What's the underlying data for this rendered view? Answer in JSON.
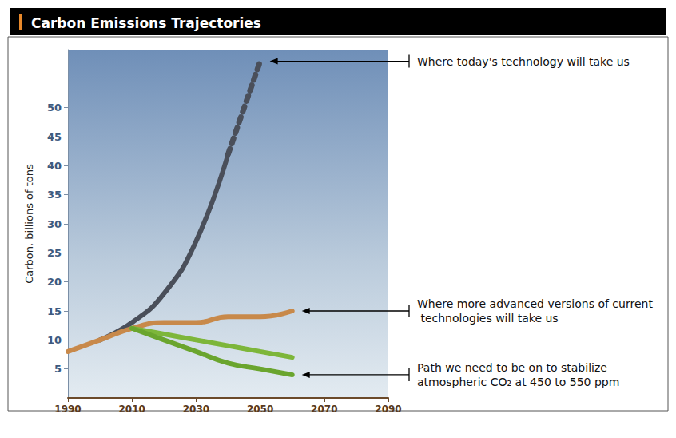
{
  "chart_data": {
    "type": "line",
    "title": "Carbon Emissions Trajectories",
    "y_label": "Carbon, billions of tons",
    "x": [
      1990,
      2000,
      2010,
      2020,
      2030,
      2040,
      2050,
      2060,
      2070,
      2080,
      2090
    ],
    "xlim": [
      1990,
      2090
    ],
    "xticks": [
      1990,
      2010,
      2030,
      2050,
      2070,
      2090
    ],
    "ylim": [
      0,
      60
    ],
    "yticks": [
      5,
      10,
      15,
      20,
      25,
      30,
      35,
      40,
      45,
      50
    ],
    "grid": false,
    "series": [
      {
        "color": "#4a4f5a",
        "line_style": "solid",
        "values": [
          null,
          10,
          13,
          18,
          27,
          42,
          null,
          null,
          null,
          null,
          null
        ]
      },
      {
        "name": "Where today's technology will take us",
        "color": "#4a4f5a",
        "line_style": "dotted",
        "values": [
          null,
          null,
          null,
          null,
          null,
          42,
          58,
          null,
          null,
          null,
          null
        ]
      },
      {
        "name": "Where more advanced versions of current technologies will take us",
        "color": "#c8894a",
        "line_style": "solid",
        "values": [
          8,
          10,
          12,
          13,
          13,
          14,
          14,
          15,
          null,
          null,
          null
        ]
      },
      {
        "color": "#7db63a",
        "line_style": "solid",
        "values": [
          null,
          null,
          12,
          11,
          10,
          9,
          8,
          7,
          null,
          null,
          null
        ]
      },
      {
        "name": "Path we need to be on to stabilize atmospheric CO₂ at 450 to 550 ppm",
        "color": "#6aa52e",
        "line_style": "solid",
        "values": [
          null,
          null,
          12,
          10,
          8,
          6,
          5,
          4,
          null,
          null,
          null
        ]
      }
    ]
  }
}
